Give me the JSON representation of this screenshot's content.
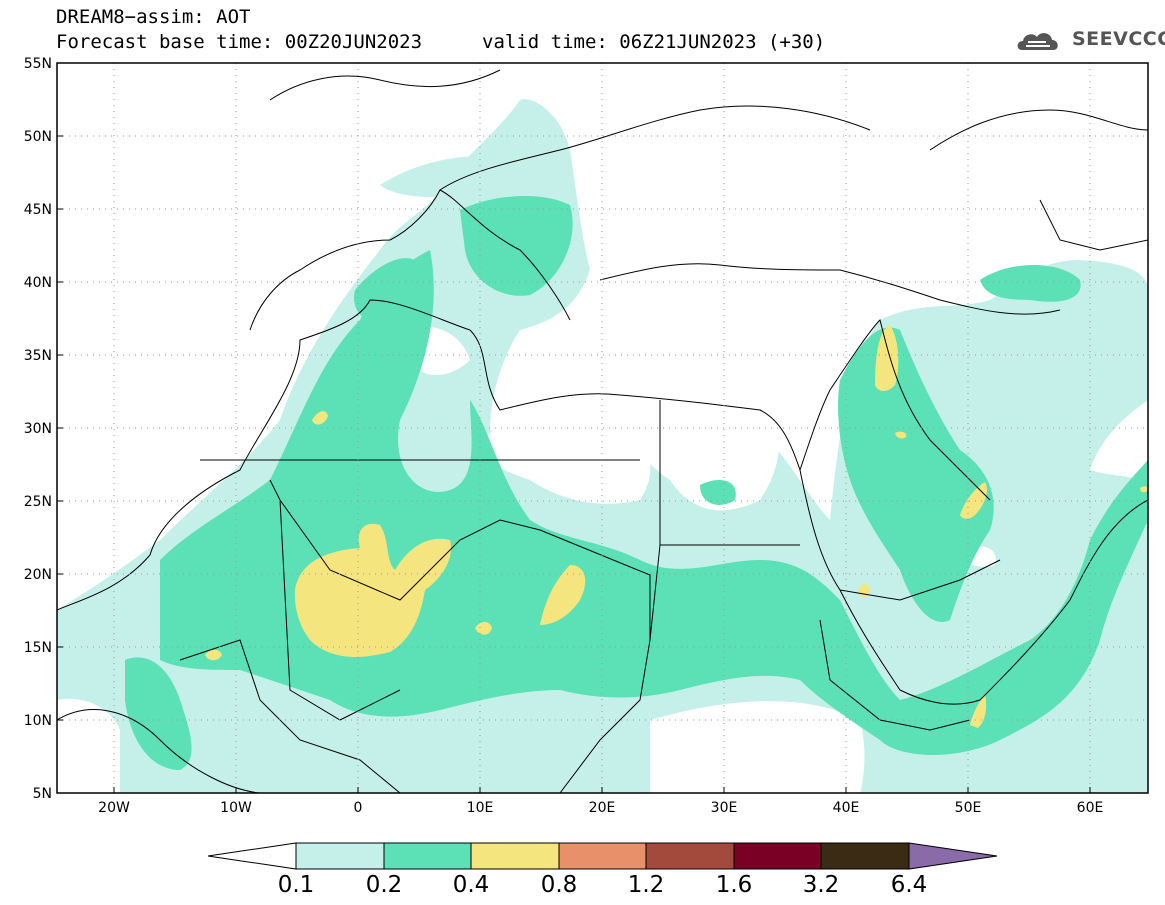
{
  "header": {
    "title": "DREAM8−assim: AOT",
    "base_time": "Forecast base time: 00Z20JUN2023",
    "valid_time": "valid time: 06Z21JUN2023 (+30)",
    "logo_text": "SEEVCCC"
  },
  "axes": {
    "lat_ticks": [
      "55N",
      "50N",
      "45N",
      "40N",
      "35N",
      "30N",
      "25N",
      "20N",
      "15N",
      "10N",
      "5N"
    ],
    "lon_ticks": [
      "20W",
      "10W",
      "0",
      "10E",
      "20E",
      "30E",
      "40E",
      "50E",
      "60E"
    ]
  },
  "colors": {
    "c1": "#c4f0e9",
    "c2": "#5ce0b6",
    "c3": "#f4e57f",
    "c4": "#e8906a",
    "c5": "#a44a3c",
    "c6": "#7a0025",
    "c7": "#3b2a14",
    "c8": "#8a6aa8"
  },
  "legend": {
    "labels": [
      "0.1",
      "0.2",
      "0.4",
      "0.8",
      "1.2",
      "1.6",
      "3.2",
      "6.4"
    ]
  }
}
